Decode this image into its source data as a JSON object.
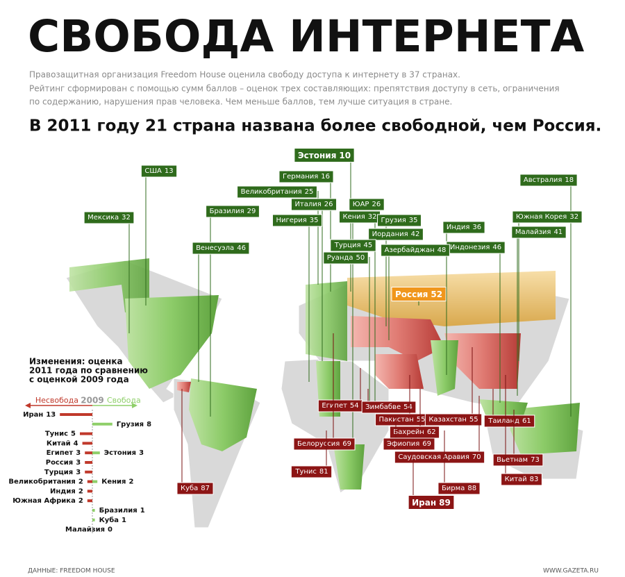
{
  "title": "СВОБОДА ИНТЕРНЕТА",
  "description": [
    "Правозащитная организация Freedom House оценила свободу доступа к интернету в 37 странах.",
    "Рейтинг сформирован с помощью сумм баллов – оценок трех составляющих: препятствия доступу в сеть, ограничения",
    "по содержанию, нарушения прав человека. Чем меньше баллов, тем лучше ситуация в стране."
  ],
  "headline": "В 2011 году 21 страна названа более свободной, чем Россия.",
  "map": {
    "labels": [
      {
        "name": "Эстония",
        "score": 10,
        "color": "#2f6b1c"
      },
      {
        "name": "США",
        "score": 13,
        "color": "#2f6b1c"
      },
      {
        "name": "Германия",
        "score": 16,
        "color": "#2f6b1c"
      },
      {
        "name": "Австралия",
        "score": 18,
        "color": "#2f6b1c"
      },
      {
        "name": "Великобритания",
        "score": 25,
        "color": "#2f6b1c"
      },
      {
        "name": "Италия",
        "score": 26,
        "color": "#2f6b1c"
      },
      {
        "name": "ЮАР",
        "score": 26,
        "color": "#2f6b1c"
      },
      {
        "name": "Бразилия",
        "score": 29,
        "color": "#2f6b1c"
      },
      {
        "name": "Мексика",
        "score": 32,
        "color": "#2f6b1c"
      },
      {
        "name": "Нигерия",
        "score": 35,
        "color": "#2f6b1c"
      },
      {
        "name": "Кения",
        "score": 32,
        "color": "#2f6b1c"
      },
      {
        "name": "Грузия",
        "score": 35,
        "color": "#2f6b1c"
      },
      {
        "name": "Южная Корея",
        "score": 32,
        "color": "#2f6b1c"
      },
      {
        "name": "Индия",
        "score": 36,
        "color": "#2f6b1c"
      },
      {
        "name": "Малайзия",
        "score": 41,
        "color": "#2f6b1c"
      },
      {
        "name": "Иордания",
        "score": 42,
        "color": "#2f6b1c"
      },
      {
        "name": "Турция",
        "score": 45,
        "color": "#2f6b1c"
      },
      {
        "name": "Венесуэла",
        "score": 46,
        "color": "#2f6b1c"
      },
      {
        "name": "Индонезия",
        "score": 46,
        "color": "#2f6b1c"
      },
      {
        "name": "Азербайджан",
        "score": 48,
        "color": "#2f6b1c"
      },
      {
        "name": "Руанда",
        "score": 50,
        "color": "#2f6b1c"
      },
      {
        "name": "Россия",
        "score": 52,
        "color": "#f0961c"
      },
      {
        "name": "Египет",
        "score": 54,
        "color": "#8c1515"
      },
      {
        "name": "Зимбабве",
        "score": 54,
        "color": "#8c1515"
      },
      {
        "name": "Пакистан",
        "score": 55,
        "color": "#8c1515"
      },
      {
        "name": "Казахстан",
        "score": 55,
        "color": "#8c1515"
      },
      {
        "name": "Таиланд",
        "score": 61,
        "color": "#8c1515"
      },
      {
        "name": "Бахрейн",
        "score": 62,
        "color": "#8c1515"
      },
      {
        "name": "Белоруссия",
        "score": 69,
        "color": "#8c1515"
      },
      {
        "name": "Эфиопия",
        "score": 69,
        "color": "#8c1515"
      },
      {
        "name": "Саудовская Аравия",
        "score": 70,
        "color": "#8c1515"
      },
      {
        "name": "Вьетнам",
        "score": 73,
        "color": "#8c1515"
      },
      {
        "name": "Тунис",
        "score": 81,
        "color": "#8c1515"
      },
      {
        "name": "Бирма",
        "score": 88,
        "color": "#8c1515"
      },
      {
        "name": "Куба",
        "score": 87,
        "color": "#8c1515"
      },
      {
        "name": "Китай",
        "score": 83,
        "color": "#8c1515"
      },
      {
        "name": "Иран",
        "score": 89,
        "color": "#8c1515"
      }
    ]
  },
  "chart_data": {
    "type": "bar",
    "title": [
      "Изменения: оценка",
      "2011 года по сравнению",
      "с оценкой 2009 года"
    ],
    "axis_label": "2009",
    "series": [
      {
        "name": "Несвобода",
        "color": "#c0392b",
        "categories": [
          "Иран",
          "Тунис",
          "Китай",
          "Египет",
          "Россия",
          "Турция",
          "Великобритания",
          "Индия",
          "Южная Африка"
        ],
        "values": [
          13,
          5,
          4,
          3,
          3,
          3,
          2,
          2,
          2
        ]
      },
      {
        "name": "Свобода",
        "color": "#8fcf6a",
        "categories": [
          "Грузия",
          "Эстония",
          "Кения",
          "Бразилия",
          "Куба",
          "Малайзия"
        ],
        "values": [
          8,
          3,
          2,
          1,
          1,
          0
        ]
      }
    ]
  },
  "footer": {
    "source": "ДАННЫЕ: FREEDOM HOUSE",
    "site": "WWW.GAZETA.RU"
  }
}
